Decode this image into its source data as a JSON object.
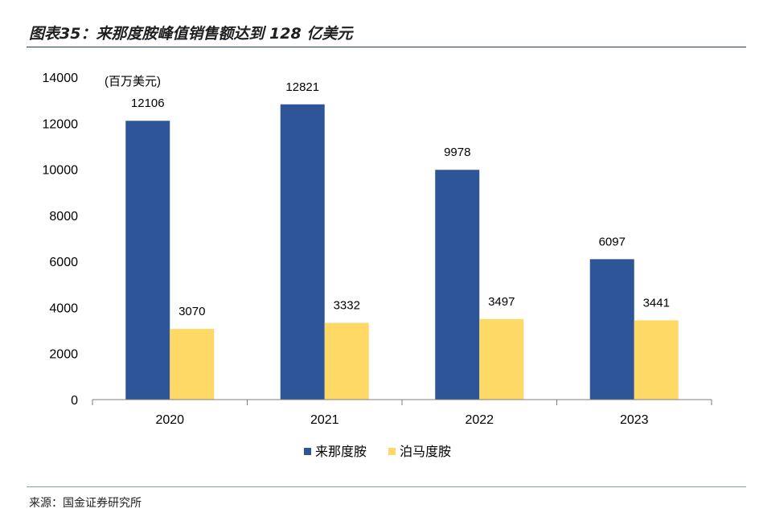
{
  "figure": {
    "title": "图表35：来那度胺峰值销售额达到 128 亿美元",
    "source": "来源：国金证券研究所"
  },
  "colors": {
    "series_1": "#2e5597",
    "series_2": "#ffd966",
    "axis": "#7f7f7f",
    "rule": "#1f3864"
  },
  "chart_data": {
    "type": "bar",
    "unit_label": "(百万美元)",
    "categories": [
      "2020",
      "2021",
      "2022",
      "2023"
    ],
    "series": [
      {
        "name": "来那度胺",
        "values": [
          12106,
          12821,
          9978,
          6097
        ]
      },
      {
        "name": "泊马度胺",
        "values": [
          3070,
          3332,
          3497,
          3441
        ]
      }
    ],
    "ylim": [
      0,
      14000
    ],
    "yticks": [
      0,
      2000,
      4000,
      6000,
      8000,
      10000,
      12000,
      14000
    ],
    "grid": false,
    "legend": "bottom",
    "data_labels": true
  }
}
